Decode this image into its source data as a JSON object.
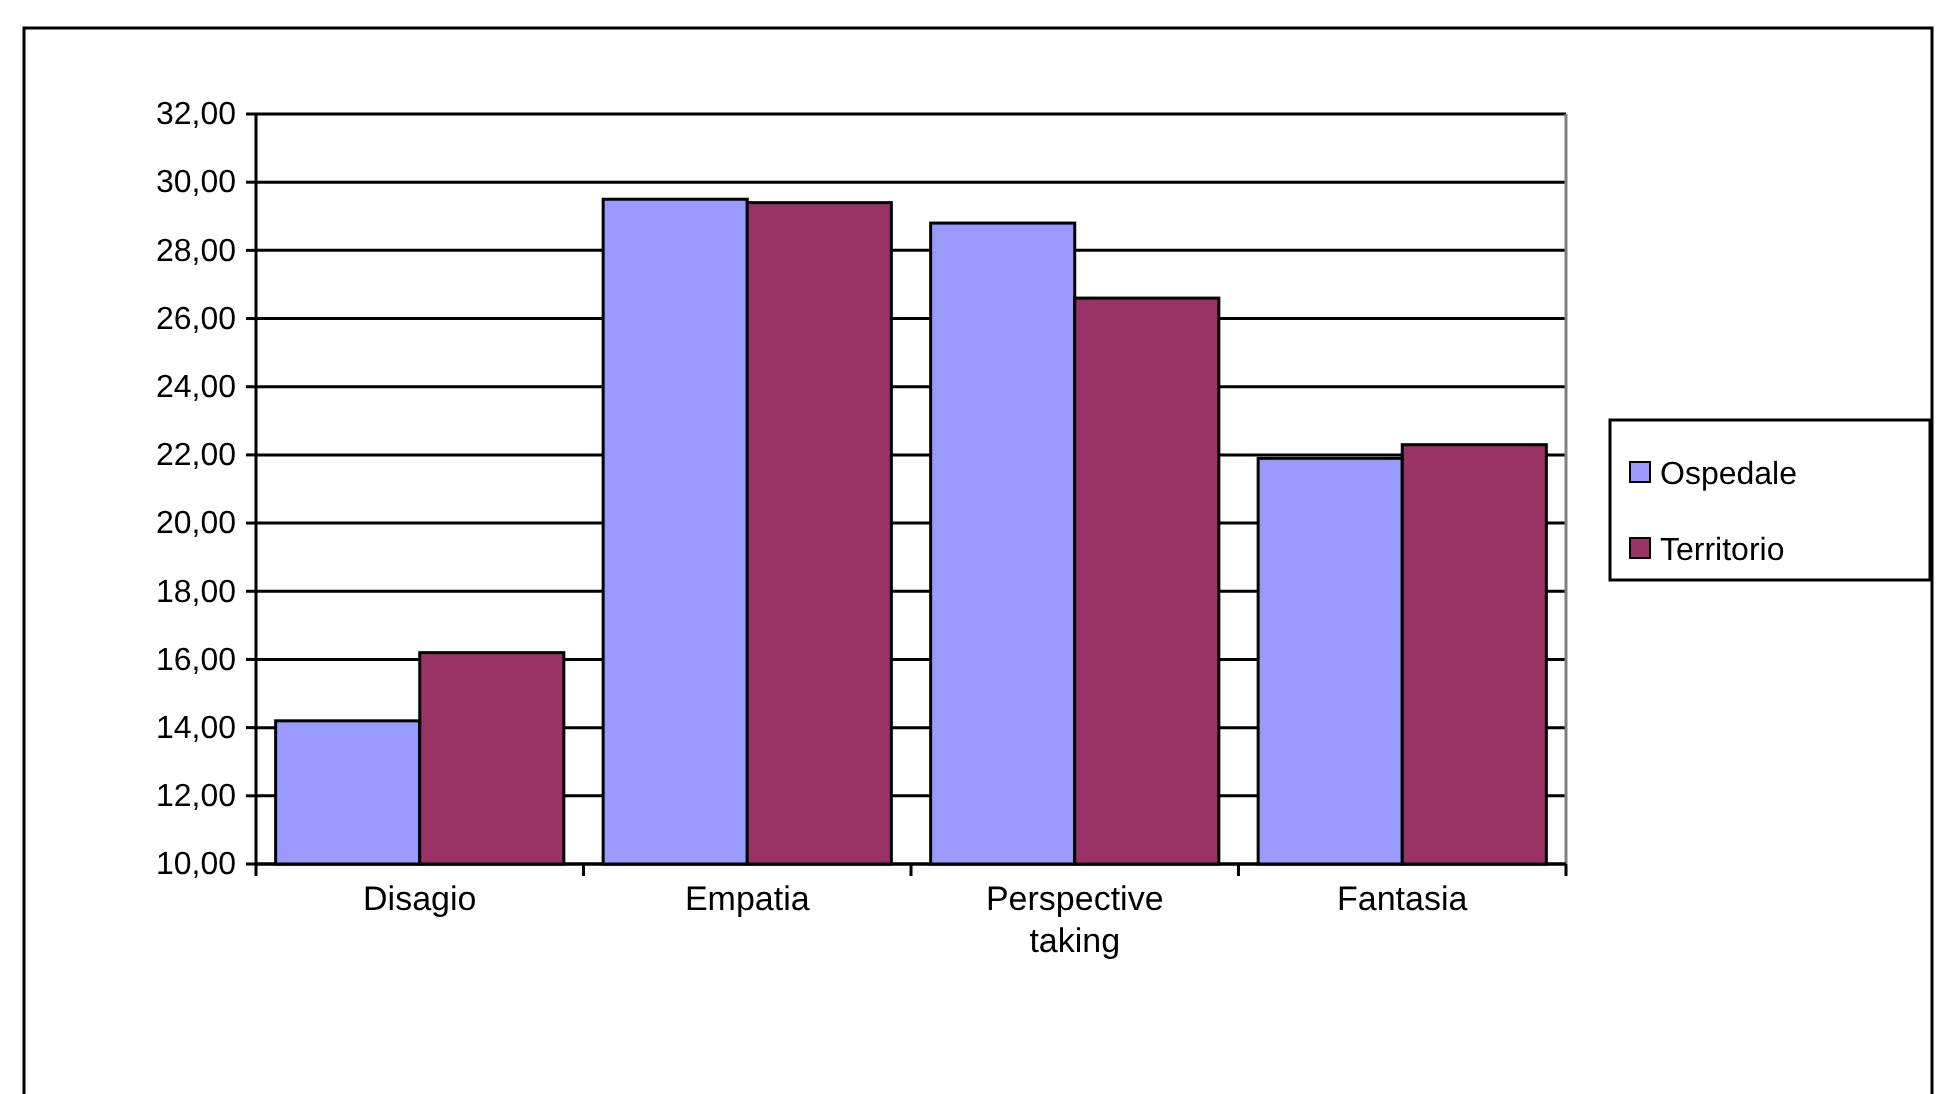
{
  "chart_data": {
    "type": "bar",
    "categories": [
      "Disagio",
      "Empatia",
      "Perspective taking",
      "Fantasia"
    ],
    "series": [
      {
        "name": "Ospedale",
        "color": "#9999ff",
        "values": [
          14.2,
          29.5,
          28.8,
          21.9
        ]
      },
      {
        "name": "Territorio",
        "color": "#993366",
        "values": [
          16.2,
          29.4,
          26.6,
          22.3
        ]
      }
    ],
    "ylim": [
      10,
      32
    ],
    "yticks": [
      {
        "value": 10,
        "label": "10,00"
      },
      {
        "value": 12,
        "label": "12,00"
      },
      {
        "value": 14,
        "label": "14,00"
      },
      {
        "value": 16,
        "label": "16,00"
      },
      {
        "value": 18,
        "label": "18,00"
      },
      {
        "value": 20,
        "label": "20,00"
      },
      {
        "value": 22,
        "label": "22,00"
      },
      {
        "value": 24,
        "label": "24,00"
      },
      {
        "value": 26,
        "label": "26,00"
      },
      {
        "value": 28,
        "label": "28,00"
      },
      {
        "value": 30,
        "label": "30,00"
      },
      {
        "value": 32,
        "label": "32,00"
      }
    ],
    "grid": "y",
    "legend": "right"
  }
}
